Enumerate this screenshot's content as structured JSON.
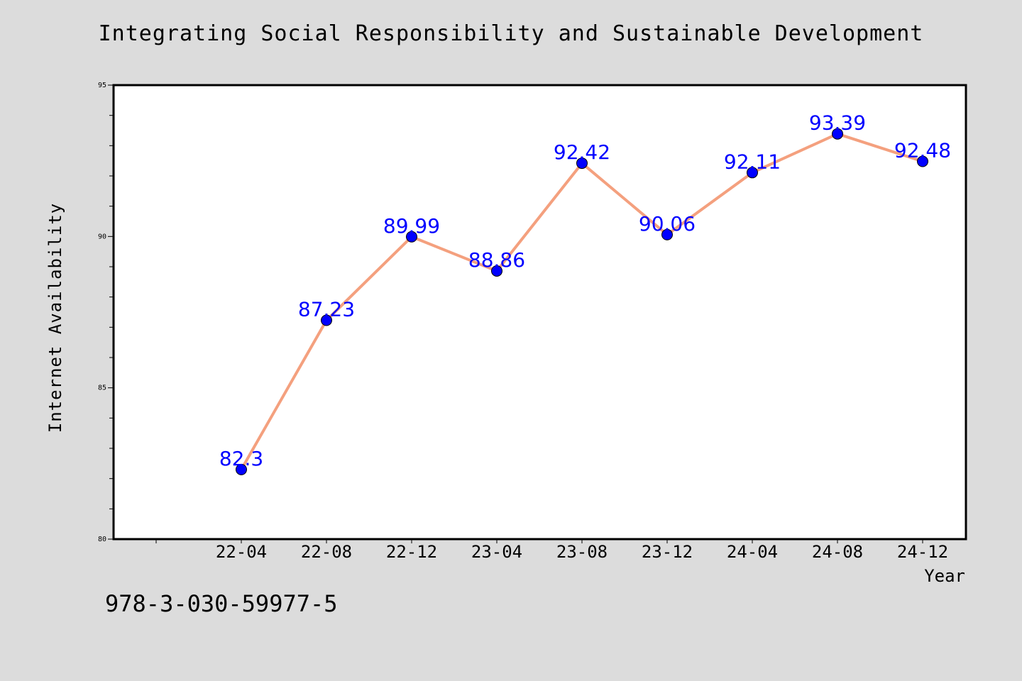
{
  "chart_data": {
    "type": "line",
    "title": "Integrating Social Responsibility and Sustainable Development",
    "xlabel": "Year",
    "ylabel": "Internet Availability",
    "categories": [
      "22-04",
      "22-08",
      "22-12",
      "23-04",
      "23-08",
      "23-12",
      "24-04",
      "24-08",
      "24-12"
    ],
    "series": [
      {
        "values": [
          82.3,
          87.23,
          89.99,
          88.86,
          92.42,
          90.06,
          92.11,
          93.39,
          92.48
        ]
      }
    ],
    "data_labels": [
      "82.3",
      "87.23",
      "89.99",
      "88.86",
      "92.42",
      "90.06",
      "92.11",
      "93.39",
      "92.48"
    ],
    "ylim": [
      80,
      95
    ],
    "yticks": [
      80,
      85,
      90,
      95
    ],
    "grid": false,
    "line_color": "#f4a07e",
    "marker_color": "#0000ff",
    "label_color": "#0000ff"
  },
  "footer": {
    "code": "978-3-030-59977-5"
  }
}
